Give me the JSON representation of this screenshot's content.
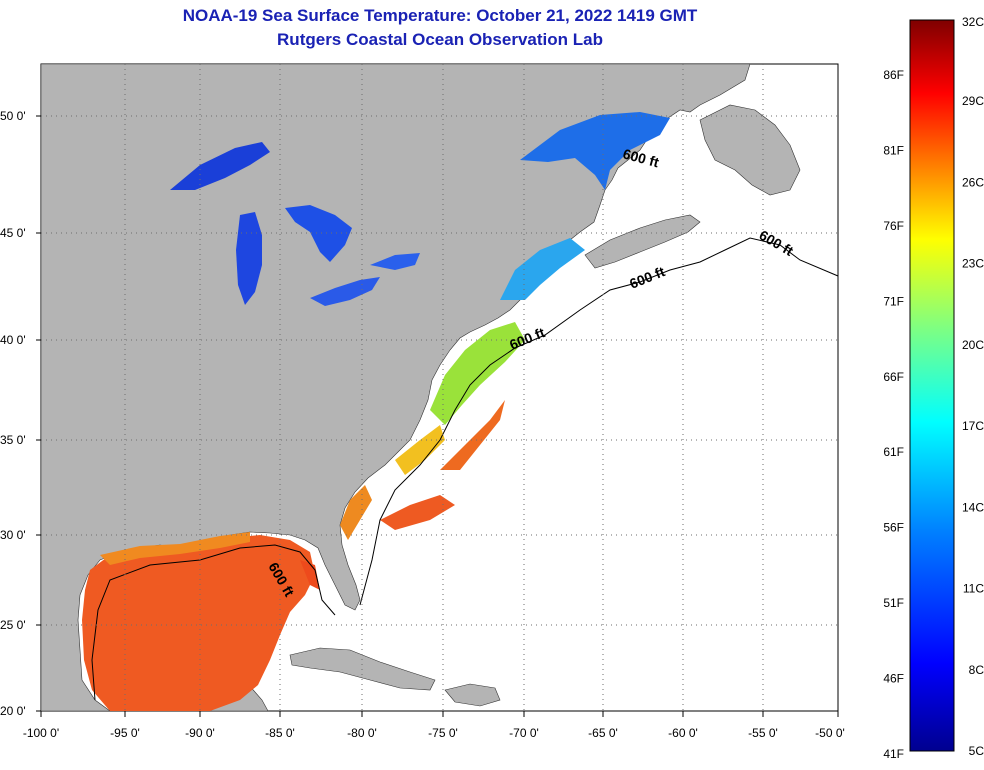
{
  "title": {
    "line1": "NOAA-19 Sea Surface Temperature:  October 21, 2022 1419 GMT",
    "line2": "Rutgers Coastal Ocean Observation Lab"
  },
  "map": {
    "lon_ticks": [
      "-100 0'",
      "-95 0'",
      "-90 0'",
      "-85 0'",
      "-80 0'",
      "-75 0'",
      "-70 0'",
      "-65 0'",
      "-60 0'",
      "-55 0'",
      "-50 0'"
    ],
    "lat_ticks": [
      "50 0'",
      "45 0'",
      "40 0'",
      "35 0'",
      "30 0'",
      "25 0'",
      "20 0'"
    ],
    "contour_label": "600 ft",
    "colors": {
      "land": "#b4b4b4",
      "no_data": "#ffffff",
      "grid": "#6e6e6e"
    }
  },
  "colorbar": {
    "celsius_labels": [
      "32C",
      "29C",
      "26C",
      "23C",
      "20C",
      "17C",
      "14C",
      "11C",
      "8C",
      "5C"
    ],
    "fahrenheit_labels": [
      "86F",
      "81F",
      "76F",
      "71F",
      "66F",
      "61F",
      "56F",
      "51F",
      "46F",
      "41F"
    ],
    "colors": [
      "#7f0000",
      "#ff0000",
      "#ff8000",
      "#ffff00",
      "#80ff80",
      "#00ffff",
      "#0080ff",
      "#0000ff",
      "#00008f"
    ]
  }
}
